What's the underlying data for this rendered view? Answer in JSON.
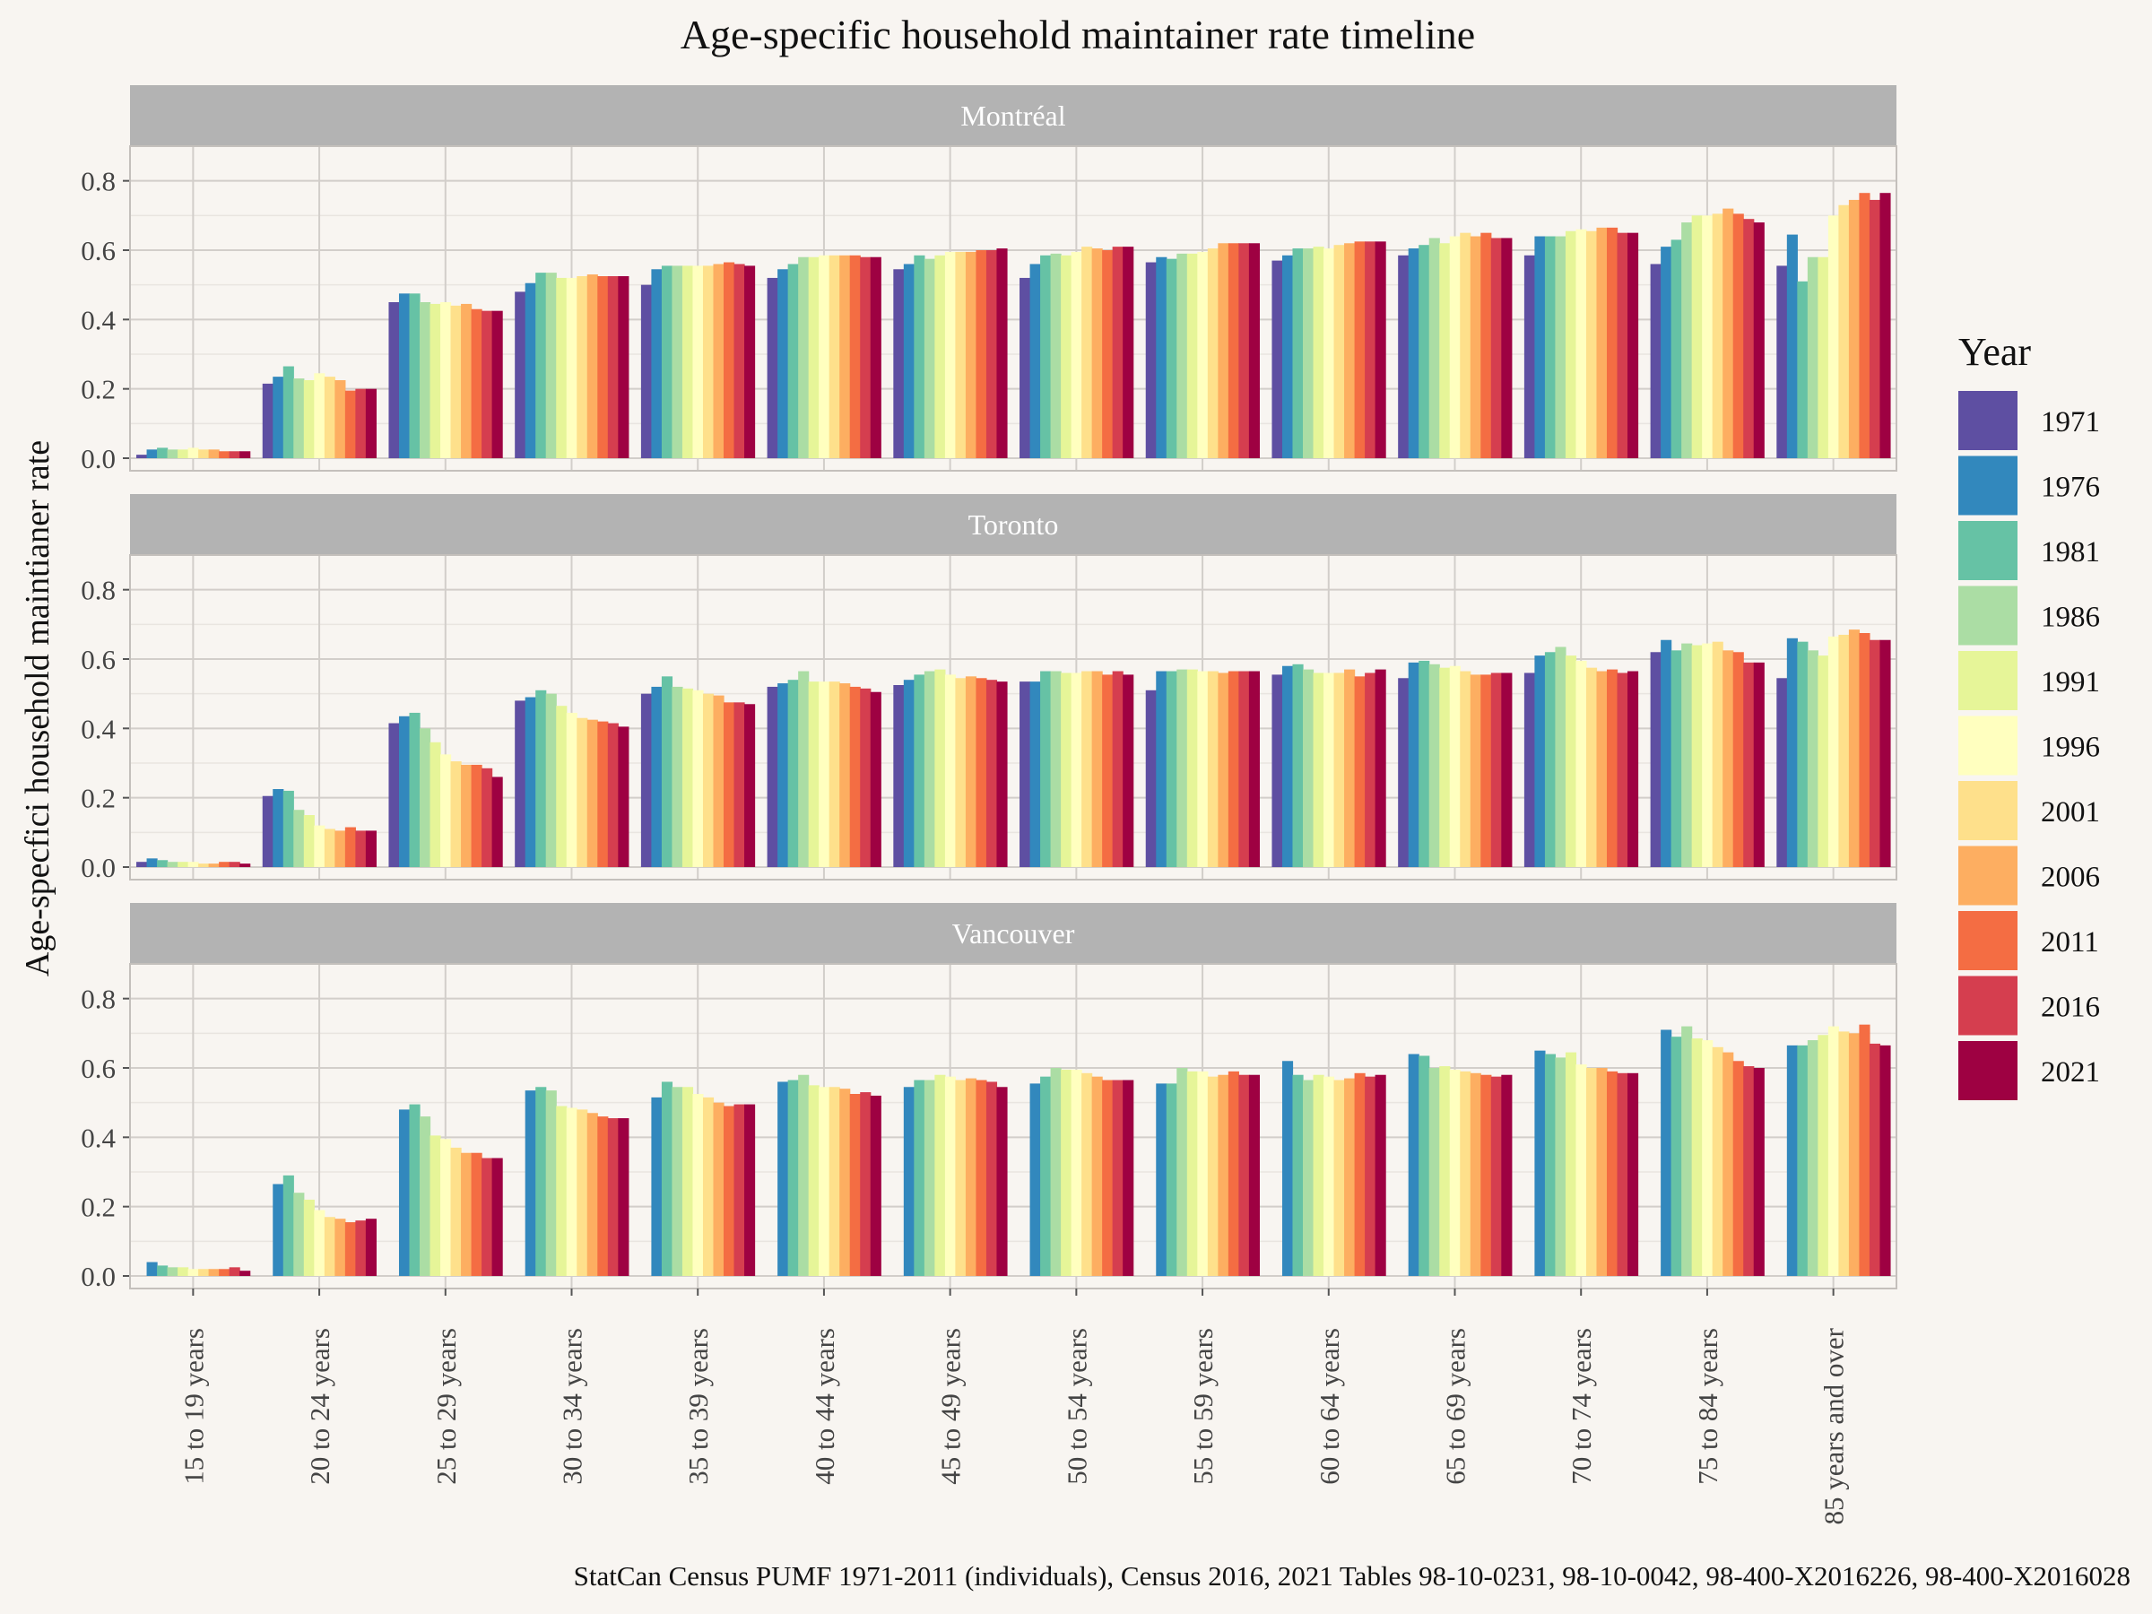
{
  "chart_data": {
    "type": "bar",
    "title": "Age-specific household maintainer rate timeline",
    "ylabel": "Age-specfici household maintianer rate",
    "xlabel": "",
    "caption": "StatCan Census PUMF 1971-2011 (individuals), Census 2016, 2021 Tables 98-10-0231, 98-10-0042, 98-400-X2016226, 98-400-X2016028",
    "ylim": [
      0,
      0.9
    ],
    "yticks": [
      0.0,
      0.2,
      0.4,
      0.6,
      0.8
    ],
    "ytick_labels": [
      "0.0",
      "0.2",
      "0.4",
      "0.6",
      "0.8"
    ],
    "grid": true,
    "legend": {
      "title": "Year",
      "position": "right",
      "entries": [
        "1971",
        "1976",
        "1981",
        "1986",
        "1991",
        "1996",
        "2001",
        "2006",
        "2011",
        "2016",
        "2021"
      ],
      "colors": [
        "#5e4fa2",
        "#3288bd",
        "#66c2a5",
        "#abdda4",
        "#e6f598",
        "#ffffbf",
        "#fee08b",
        "#fdae61",
        "#f46d43",
        "#d53e4f",
        "#9e0142"
      ]
    },
    "categories": [
      "15 to 19 years",
      "20 to 24 years",
      "25 to 29 years",
      "30 to 34 years",
      "35 to 39 years",
      "40 to 44 years",
      "45 to 49 years",
      "50 to 54 years",
      "55 to 59 years",
      "60 to 64 years",
      "65 to 69 years",
      "70 to 74 years",
      "75 to 84 years",
      "85 years and over"
    ],
    "panels": [
      {
        "name": "Montréal",
        "values": [
          [
            0.01,
            0.025,
            0.03,
            0.025,
            0.025,
            0.03,
            0.025,
            0.025,
            0.02,
            0.02,
            0.02
          ],
          [
            0.215,
            0.235,
            0.265,
            0.23,
            0.225,
            0.245,
            0.235,
            0.225,
            0.195,
            0.2,
            0.2
          ],
          [
            0.45,
            0.475,
            0.475,
            0.45,
            0.445,
            0.45,
            0.44,
            0.445,
            0.43,
            0.425,
            0.425
          ],
          [
            0.48,
            0.505,
            0.535,
            0.535,
            0.52,
            0.52,
            0.525,
            0.53,
            0.525,
            0.525,
            0.525
          ],
          [
            0.5,
            0.545,
            0.555,
            0.555,
            0.555,
            0.555,
            0.555,
            0.56,
            0.565,
            0.56,
            0.555
          ],
          [
            0.52,
            0.545,
            0.56,
            0.58,
            0.58,
            0.585,
            0.585,
            0.585,
            0.585,
            0.58,
            0.58
          ],
          [
            0.545,
            0.56,
            0.585,
            0.575,
            0.585,
            0.595,
            0.595,
            0.595,
            0.6,
            0.6,
            0.605
          ],
          [
            0.52,
            0.56,
            0.585,
            0.59,
            0.585,
            0.595,
            0.61,
            0.605,
            0.6,
            0.61,
            0.61
          ],
          [
            0.565,
            0.58,
            0.575,
            0.59,
            0.59,
            0.595,
            0.605,
            0.62,
            0.62,
            0.62,
            0.62
          ],
          [
            0.57,
            0.585,
            0.605,
            0.605,
            0.61,
            0.605,
            0.615,
            0.62,
            0.625,
            0.625,
            0.625
          ],
          [
            0.585,
            0.605,
            0.615,
            0.635,
            0.62,
            0.64,
            0.65,
            0.64,
            0.65,
            0.635,
            0.635
          ],
          [
            0.585,
            0.64,
            0.64,
            0.64,
            0.655,
            0.66,
            0.655,
            0.665,
            0.665,
            0.65,
            0.65
          ],
          [
            0.56,
            0.61,
            0.63,
            0.68,
            0.7,
            0.7,
            0.705,
            0.72,
            0.705,
            0.69,
            0.68
          ],
          [
            0.555,
            0.645,
            0.51,
            0.58,
            0.58,
            0.7,
            0.73,
            0.745,
            0.765,
            0.745,
            0.765
          ]
        ]
      },
      {
        "name": "Toronto",
        "values": [
          [
            0.015,
            0.025,
            0.02,
            0.015,
            0.015,
            0.015,
            0.01,
            0.01,
            0.015,
            0.015,
            0.01
          ],
          [
            0.205,
            0.225,
            0.22,
            0.165,
            0.15,
            0.12,
            0.11,
            0.105,
            0.115,
            0.105,
            0.105
          ],
          [
            0.415,
            0.435,
            0.445,
            0.4,
            0.36,
            0.325,
            0.305,
            0.295,
            0.295,
            0.285,
            0.26
          ],
          [
            0.48,
            0.49,
            0.51,
            0.5,
            0.465,
            0.445,
            0.43,
            0.425,
            0.42,
            0.415,
            0.405
          ],
          [
            0.5,
            0.52,
            0.55,
            0.52,
            0.515,
            0.51,
            0.5,
            0.495,
            0.475,
            0.475,
            0.47
          ],
          [
            0.52,
            0.53,
            0.54,
            0.565,
            0.535,
            0.535,
            0.535,
            0.53,
            0.52,
            0.515,
            0.505
          ],
          [
            0.525,
            0.54,
            0.555,
            0.565,
            0.57,
            0.555,
            0.545,
            0.55,
            0.545,
            0.54,
            0.535
          ],
          [
            0.535,
            0.535,
            0.565,
            0.565,
            0.56,
            0.56,
            0.565,
            0.565,
            0.555,
            0.565,
            0.555
          ],
          [
            0.51,
            0.565,
            0.565,
            0.57,
            0.57,
            0.565,
            0.565,
            0.56,
            0.565,
            0.565,
            0.565
          ],
          [
            0.555,
            0.58,
            0.585,
            0.57,
            0.56,
            0.56,
            0.56,
            0.57,
            0.55,
            0.56,
            0.57
          ],
          [
            0.545,
            0.59,
            0.595,
            0.585,
            0.575,
            0.58,
            0.565,
            0.555,
            0.555,
            0.56,
            0.56
          ],
          [
            0.56,
            0.61,
            0.62,
            0.635,
            0.61,
            0.595,
            0.575,
            0.565,
            0.57,
            0.56,
            0.565
          ],
          [
            0.62,
            0.655,
            0.625,
            0.645,
            0.64,
            0.645,
            0.65,
            0.625,
            0.62,
            0.59,
            0.59
          ],
          [
            0.545,
            0.66,
            0.65,
            0.625,
            0.61,
            0.665,
            0.67,
            0.685,
            0.675,
            0.655,
            0.655
          ]
        ]
      },
      {
        "name": "Vancouver",
        "values": [
          [
            0.0,
            0.04,
            0.03,
            0.025,
            0.025,
            0.02,
            0.02,
            0.02,
            0.02,
            0.025,
            0.015
          ],
          [
            0.0,
            0.265,
            0.29,
            0.24,
            0.22,
            0.19,
            0.17,
            0.165,
            0.155,
            0.16,
            0.165
          ],
          [
            0.0,
            0.48,
            0.495,
            0.46,
            0.405,
            0.395,
            0.37,
            0.355,
            0.355,
            0.34,
            0.34
          ],
          [
            0.0,
            0.535,
            0.545,
            0.535,
            0.49,
            0.485,
            0.48,
            0.47,
            0.46,
            0.455,
            0.455
          ],
          [
            0.0,
            0.515,
            0.56,
            0.545,
            0.545,
            0.525,
            0.515,
            0.5,
            0.49,
            0.495,
            0.495
          ],
          [
            0.0,
            0.56,
            0.565,
            0.58,
            0.55,
            0.545,
            0.545,
            0.54,
            0.525,
            0.53,
            0.52
          ],
          [
            0.0,
            0.545,
            0.565,
            0.565,
            0.58,
            0.575,
            0.565,
            0.57,
            0.565,
            0.56,
            0.545
          ],
          [
            0.0,
            0.555,
            0.575,
            0.6,
            0.595,
            0.595,
            0.585,
            0.575,
            0.565,
            0.565,
            0.565
          ],
          [
            0.0,
            0.555,
            0.555,
            0.6,
            0.59,
            0.59,
            0.575,
            0.58,
            0.59,
            0.58,
            0.58
          ],
          [
            0.0,
            0.62,
            0.58,
            0.565,
            0.58,
            0.575,
            0.565,
            0.57,
            0.585,
            0.575,
            0.58
          ],
          [
            0.0,
            0.64,
            0.635,
            0.6,
            0.605,
            0.595,
            0.59,
            0.585,
            0.58,
            0.575,
            0.58
          ],
          [
            0.0,
            0.65,
            0.64,
            0.63,
            0.645,
            0.61,
            0.6,
            0.6,
            0.59,
            0.585,
            0.585
          ],
          [
            0.0,
            0.71,
            0.69,
            0.72,
            0.685,
            0.68,
            0.66,
            0.645,
            0.62,
            0.605,
            0.6
          ],
          [
            0.0,
            0.665,
            0.665,
            0.68,
            0.695,
            0.72,
            0.705,
            0.7,
            0.725,
            0.67,
            0.665
          ]
        ]
      }
    ]
  }
}
